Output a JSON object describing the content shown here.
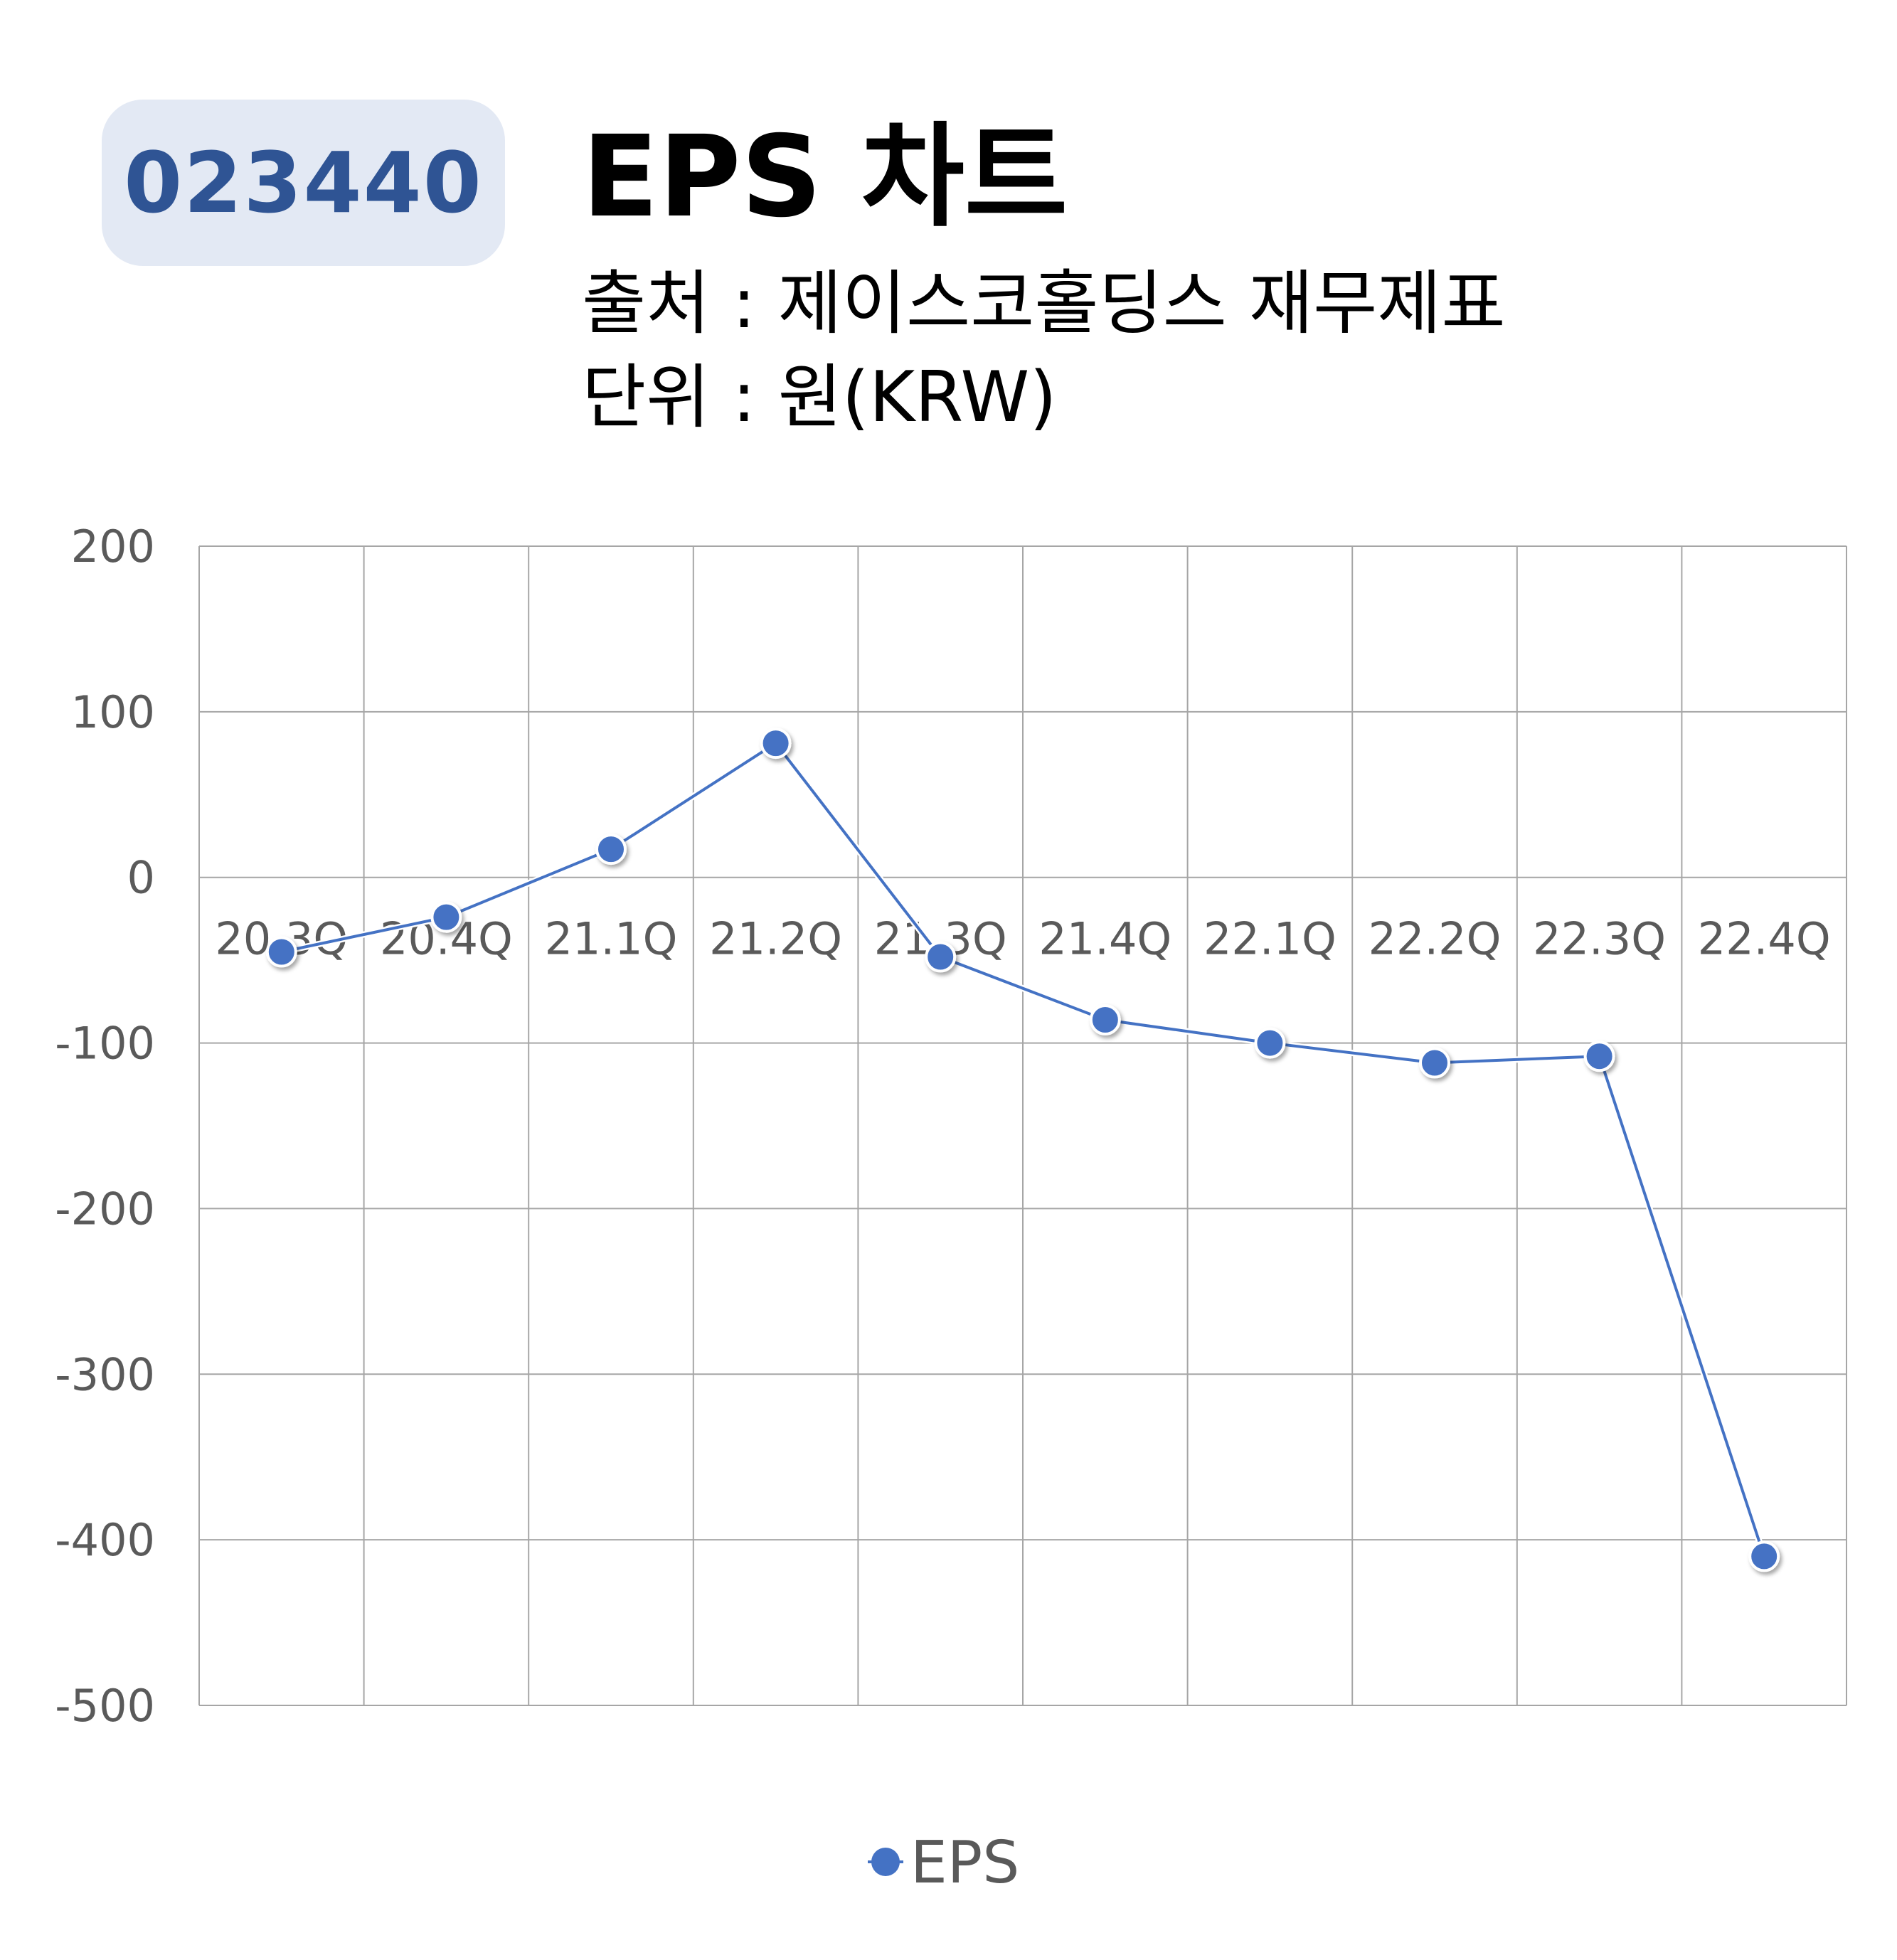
{
  "header": {
    "code": "023440",
    "title": "EPS 차트",
    "source": "출처 : 제이스코홀딩스 재무제표",
    "unit": "단위 : 원(KRW)"
  },
  "colors": {
    "series": "#4472c4",
    "badge_bg": "#e3e9f4",
    "badge_text": "#2f5494",
    "grid": "#a6a6a6"
  },
  "chart_data": {
    "type": "line",
    "categories": [
      "20.3Q",
      "20.4Q",
      "21.1Q",
      "21.2Q",
      "21.3Q",
      "21.4Q",
      "22.1Q",
      "22.2Q",
      "22.3Q",
      "22.4Q"
    ],
    "series": [
      {
        "name": "EPS",
        "values": [
          -45,
          -24,
          17,
          81,
          -48,
          -86,
          -100,
          -112,
          -108,
          -410
        ]
      }
    ],
    "ylim": [
      -500,
      200
    ],
    "yticks": [
      200,
      100,
      0,
      -100,
      -200,
      -300,
      -400,
      -500
    ],
    "grid": true,
    "legend": "bottom"
  }
}
